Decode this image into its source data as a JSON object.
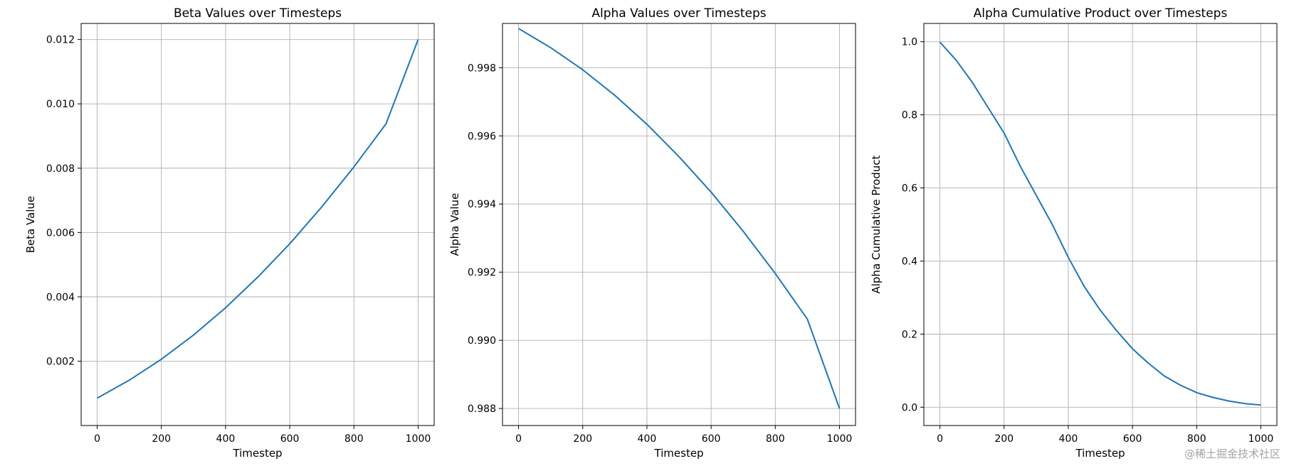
{
  "chart_data": [
    {
      "type": "line",
      "title": "Beta Values over Timesteps",
      "xlabel": "Timestep",
      "ylabel": "Beta Value",
      "xlim": [
        -50,
        1050
      ],
      "ylim": [
        0.0,
        0.0125
      ],
      "xticks": [
        0,
        200,
        400,
        600,
        800,
        1000
      ],
      "xtick_labels": [
        "0",
        "200",
        "400",
        "600",
        "800",
        "1000"
      ],
      "yticks": [
        0.002,
        0.004,
        0.006,
        0.008,
        0.01,
        0.012
      ],
      "ytick_labels": [
        "0.002",
        "0.004",
        "0.006",
        "0.008",
        "0.010",
        "0.012"
      ],
      "grid": true,
      "color": "#1f77b4",
      "x": [
        0,
        100,
        200,
        300,
        400,
        500,
        600,
        700,
        800,
        900,
        1000
      ],
      "y": [
        0.00085,
        0.00141,
        0.00206,
        0.00281,
        0.00366,
        0.00461,
        0.00565,
        0.0068,
        0.00804,
        0.00938,
        0.012
      ]
    },
    {
      "type": "line",
      "title": "Alpha Values over Timesteps",
      "xlabel": "Timestep",
      "ylabel": "Alpha Value",
      "xlim": [
        -50,
        1050
      ],
      "ylim": [
        0.9875,
        0.9993
      ],
      "xticks": [
        0,
        200,
        400,
        600,
        800,
        1000
      ],
      "xtick_labels": [
        "0",
        "200",
        "400",
        "600",
        "800",
        "1000"
      ],
      "yticks": [
        0.988,
        0.99,
        0.992,
        0.994,
        0.996,
        0.998
      ],
      "ytick_labels": [
        "0.988",
        "0.990",
        "0.992",
        "0.994",
        "0.996",
        "0.998"
      ],
      "grid": true,
      "color": "#1f77b4",
      "x": [
        0,
        100,
        200,
        300,
        400,
        500,
        600,
        700,
        800,
        900,
        1000
      ],
      "y": [
        0.99915,
        0.99859,
        0.99794,
        0.99719,
        0.99634,
        0.99539,
        0.99435,
        0.9932,
        0.99196,
        0.99062,
        0.988
      ]
    },
    {
      "type": "line",
      "title": "Alpha Cumulative Product over Timesteps",
      "xlabel": "Timestep",
      "ylabel": "Alpha Cumulative Product",
      "xlim": [
        -50,
        1050
      ],
      "ylim": [
        -0.05,
        1.05
      ],
      "xticks": [
        0,
        200,
        400,
        600,
        800,
        1000
      ],
      "xtick_labels": [
        "0",
        "200",
        "400",
        "600",
        "800",
        "1000"
      ],
      "yticks": [
        0.0,
        0.2,
        0.4,
        0.6,
        0.8,
        1.0
      ],
      "ytick_labels": [
        "0.0",
        "0.2",
        "0.4",
        "0.6",
        "0.8",
        "1.0"
      ],
      "grid": true,
      "color": "#1f77b4",
      "x": [
        0,
        50,
        100,
        150,
        200,
        250,
        300,
        350,
        400,
        450,
        500,
        550,
        600,
        650,
        700,
        750,
        800,
        850,
        900,
        950,
        1000
      ],
      "y": [
        0.999,
        0.95,
        0.89,
        0.82,
        0.75,
        0.66,
        0.58,
        0.5,
        0.41,
        0.33,
        0.265,
        0.21,
        0.16,
        0.12,
        0.085,
        0.06,
        0.04,
        0.027,
        0.017,
        0.01,
        0.006
      ]
    }
  ],
  "watermark": "@稀土掘金技术社区"
}
